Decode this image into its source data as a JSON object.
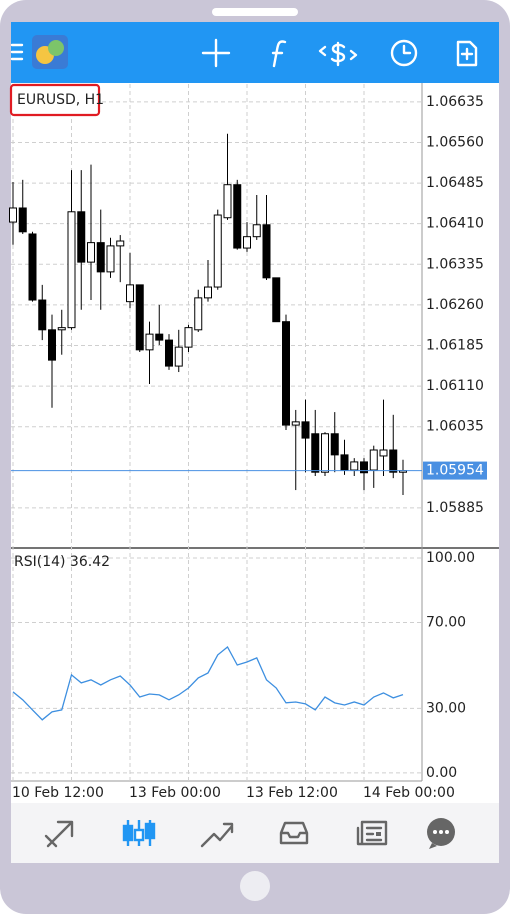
{
  "chart_data": [
    {
      "type": "candlestick",
      "title": "EURUSD, H1",
      "categories": [
        "10 Feb 12:00",
        null,
        null,
        null,
        null,
        null,
        null,
        null,
        null,
        null,
        null,
        null,
        "13 Feb 00:00",
        null,
        null,
        null,
        null,
        null,
        null,
        null,
        null,
        null,
        null,
        null,
        "13 Feb 12:00",
        null,
        null,
        null,
        null,
        null,
        null,
        null,
        null,
        null,
        null,
        null,
        "14 Feb 00:00",
        null,
        null,
        null,
        null
      ],
      "open": [
        1.06413,
        1.06439,
        1.06391,
        1.06269,
        1.06214,
        1.06214,
        1.06218,
        1.06432,
        1.06339,
        1.06375,
        1.06321,
        1.06369,
        1.06266,
        1.06297,
        1.06177,
        1.06206,
        1.06195,
        1.06147,
        1.06182,
        1.06214,
        1.06273,
        1.06293,
        1.06421,
        1.06482,
        1.06365,
        1.06386,
        1.06408,
        1.0631,
        1.06229,
        1.06038,
        1.06044,
        1.06022,
        1.05951,
        1.06022,
        1.05983,
        1.05955,
        1.0597,
        1.05955,
        1.05981,
        1.05992,
        1.05951
      ],
      "high": [
        1.06487,
        1.06491,
        1.06395,
        1.06297,
        1.06242,
        1.06251,
        1.06509,
        1.06509,
        1.06519,
        1.06436,
        1.06384,
        1.06389,
        1.06356,
        1.06297,
        1.06229,
        1.0626,
        1.06206,
        1.06214,
        1.06223,
        1.06288,
        1.06343,
        1.06436,
        1.06576,
        1.06491,
        1.06413,
        1.06463,
        1.06463,
        1.0631,
        1.06242,
        1.06066,
        1.06085,
        1.06066,
        1.06025,
        1.06062,
        1.06011,
        1.05977,
        1.05977,
        1.06,
        1.06085,
        1.06057,
        1.05974
      ],
      "low": [
        1.06371,
        1.06391,
        1.06266,
        1.06195,
        1.0607,
        1.06168,
        1.06214,
        1.06251,
        1.06269,
        1.06251,
        1.0631,
        1.06302,
        1.06254,
        1.06173,
        1.06114,
        1.06186,
        1.0614,
        1.06136,
        1.06173,
        1.0621,
        1.06266,
        1.06288,
        1.06417,
        1.06362,
        1.06358,
        1.0638,
        1.06306,
        1.06229,
        1.06029,
        1.05918,
        1.05951,
        1.05944,
        1.05944,
        1.05951,
        1.05946,
        1.05944,
        1.05918,
        1.05922,
        1.05944,
        1.0594,
        1.05909
      ],
      "close": [
        1.06439,
        1.06395,
        1.06269,
        1.06214,
        1.06158,
        1.06218,
        1.06432,
        1.06339,
        1.06375,
        1.06321,
        1.06369,
        1.06378,
        1.06297,
        1.06177,
        1.06206,
        1.06195,
        1.06147,
        1.06182,
        1.06218,
        1.06273,
        1.06293,
        1.06426,
        1.06482,
        1.06365,
        1.06386,
        1.06408,
        1.0631,
        1.06229,
        1.06038,
        1.06044,
        1.06014,
        1.05951,
        1.06022,
        1.05983,
        1.05955,
        1.0597,
        1.0595,
        1.05992,
        1.05992,
        1.05951,
        1.05954
      ],
      "up_color": "#ffffff",
      "down_color": "#000000",
      "ylim": [
        1.05811,
        1.06668
      ],
      "yticks": [
        1.06635,
        {
          "value": 1.0656,
          "label": "1.06560"
        },
        1.06485,
        {
          "value": 1.0641,
          "label": "1.06410"
        },
        1.06335,
        {
          "value": 1.0626,
          "label": "1.06260"
        },
        1.06185,
        {
          "value": 1.0611,
          "label": "1.06110"
        },
        1.06035,
        1.05885
      ],
      "current_price": 1.05954,
      "current_price_color": "#4a90e2",
      "grid": true
    },
    {
      "type": "line",
      "title": "RSI(14) 36.42",
      "color": "#3d8fe0",
      "values": [
        37.7,
        34.0,
        29.3,
        24.7,
        28.4,
        29.3,
        45.6,
        41.9,
        43.3,
        40.9,
        43.3,
        45.1,
        40.9,
        35.3,
        36.7,
        36.3,
        34.0,
        36.3,
        39.5,
        44.2,
        46.5,
        54.9,
        58.6,
        50.2,
        51.6,
        53.5,
        43.3,
        39.5,
        32.6,
        33.0,
        32.1,
        29.3,
        35.3,
        32.6,
        31.6,
        33.0,
        31.6,
        35.3,
        37.2,
        34.9,
        36.42
      ],
      "ylim": [
        -3.3,
        103.7
      ],
      "yticks": [
        {
          "value": 100,
          "label": "100.00"
        },
        {
          "value": 70,
          "label": "70.00"
        },
        {
          "value": 30,
          "label": "30.00"
        },
        {
          "value": 0,
          "label": "0.00"
        }
      ],
      "grid": true
    }
  ]
}
